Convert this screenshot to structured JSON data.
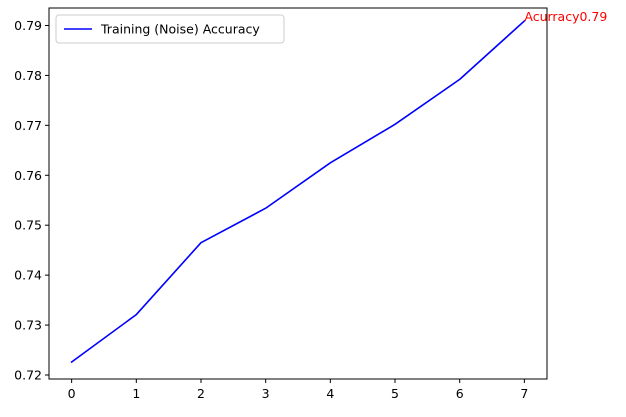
{
  "chart_data": {
    "type": "line",
    "title": "",
    "xlabel": "",
    "ylabel": "",
    "x": [
      0,
      1,
      2,
      3,
      4,
      5,
      6,
      7
    ],
    "xticks": [
      "0",
      "1",
      "2",
      "3",
      "4",
      "5",
      "6",
      "7"
    ],
    "yticks": [
      0.72,
      0.73,
      0.74,
      0.75,
      0.76,
      0.77,
      0.78,
      0.79
    ],
    "ytick_labels": [
      "0.72",
      "0.73",
      "0.74",
      "0.75",
      "0.76",
      "0.77",
      "0.78",
      "0.79"
    ],
    "xlim": [
      -0.35,
      7.35
    ],
    "ylim": [
      0.7192,
      0.7935
    ],
    "grid": false,
    "legend_position": "top-left",
    "series": [
      {
        "name": "Training (Noise) Accuracy",
        "color": "#0000ff",
        "values": [
          0.7226,
          0.7321,
          0.7465,
          0.7534,
          0.7625,
          0.7702,
          0.7792,
          0.7909
        ]
      }
    ],
    "annotation": {
      "text": "Acurracy0.79",
      "x": 7,
      "y": 0.7909,
      "color": "#ff0000"
    }
  }
}
